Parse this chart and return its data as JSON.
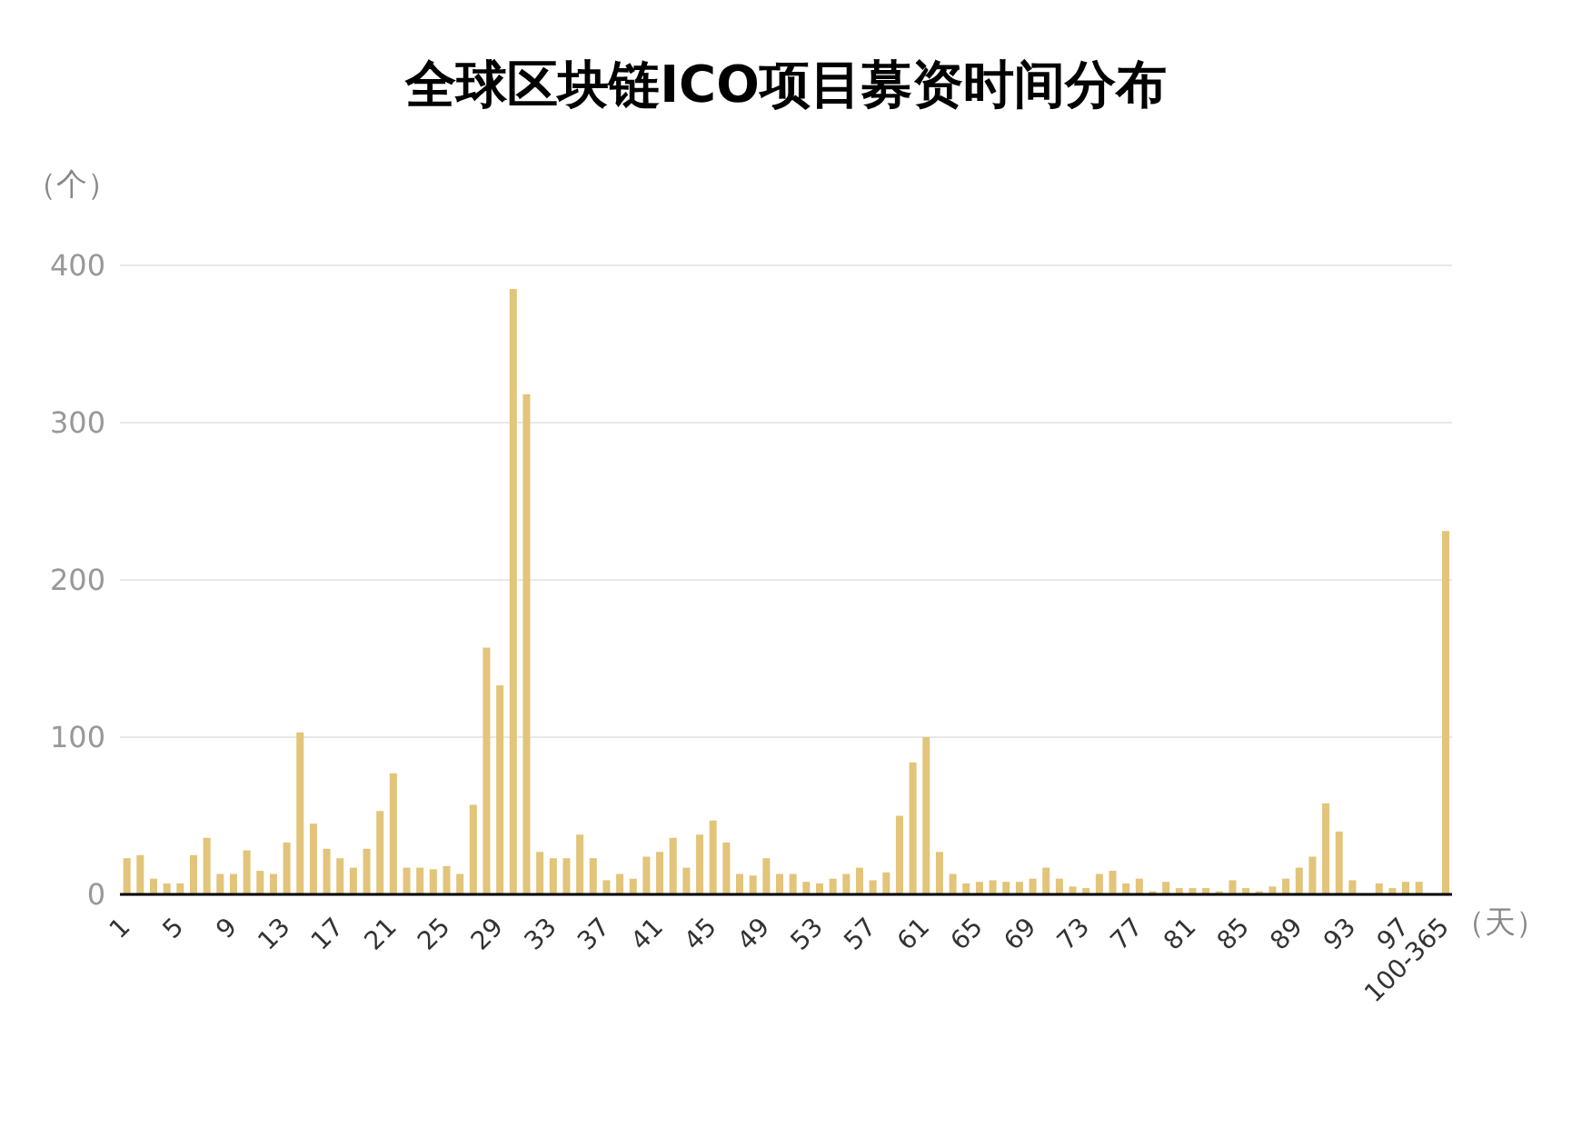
{
  "chart_data": {
    "type": "bar",
    "title": "全球区块链ICO项目募资时间分布",
    "ylabel": "（个）",
    "xlabel": "（天）",
    "categories": [
      "1",
      null,
      null,
      null,
      "5",
      null,
      null,
      null,
      "9",
      null,
      null,
      null,
      "13",
      null,
      null,
      null,
      "17",
      null,
      null,
      null,
      "21",
      null,
      null,
      null,
      "25",
      null,
      null,
      null,
      "29",
      null,
      null,
      null,
      "33",
      null,
      null,
      null,
      "37",
      null,
      null,
      null,
      "41",
      null,
      null,
      null,
      "45",
      null,
      null,
      null,
      "49",
      null,
      null,
      null,
      "53",
      null,
      null,
      null,
      "57",
      null,
      null,
      null,
      "61",
      null,
      null,
      null,
      "65",
      null,
      null,
      null,
      "69",
      null,
      null,
      null,
      "73",
      null,
      null,
      null,
      "77",
      null,
      null,
      null,
      "81",
      null,
      null,
      null,
      "85",
      null,
      null,
      null,
      "89",
      null,
      null,
      null,
      "93",
      null,
      null,
      null,
      "97",
      null,
      null,
      "100-365"
    ],
    "values": [
      23,
      25,
      10,
      7,
      7,
      25,
      36,
      13,
      13,
      28,
      15,
      13,
      33,
      103,
      45,
      29,
      23,
      17,
      29,
      53,
      77,
      17,
      17,
      16,
      18,
      13,
      57,
      157,
      133,
      385,
      318,
      27,
      23,
      23,
      38,
      23,
      9,
      13,
      10,
      24,
      27,
      36,
      17,
      38,
      47,
      33,
      13,
      12,
      23,
      13,
      13,
      8,
      7,
      10,
      13,
      17,
      9,
      14,
      50,
      84,
      100,
      27,
      13,
      7,
      8,
      9,
      8,
      8,
      10,
      17,
      10,
      5,
      4,
      13,
      15,
      7,
      10,
      2,
      8,
      4,
      4,
      4,
      2,
      9,
      4,
      2,
      5,
      10,
      17,
      24,
      58,
      40,
      9,
      0,
      7,
      4,
      8,
      8,
      0,
      231
    ],
    "color": "#e2c47a",
    "ylim": [
      0,
      400
    ],
    "yticks": [
      0,
      100,
      200,
      300,
      400
    ],
    "grid": "y"
  }
}
